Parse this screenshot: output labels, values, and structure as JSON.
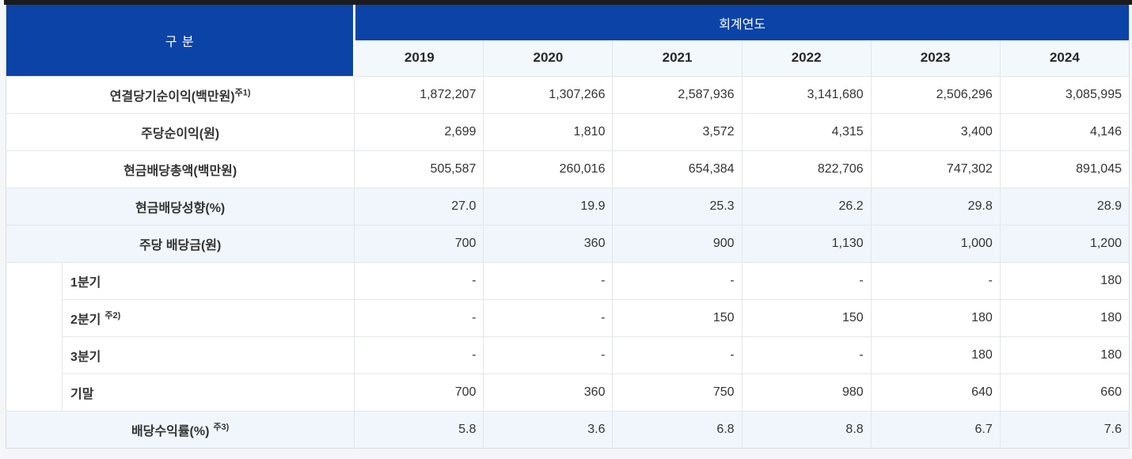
{
  "table": {
    "corner_header": "구 분",
    "group_header": "회계연도",
    "years": [
      "2019",
      "2020",
      "2021",
      "2022",
      "2023",
      "2024"
    ],
    "rows": [
      {
        "label": "연결당기순이익(백만원)",
        "footnote": "주1)",
        "footnote_spaced": false,
        "indent": false,
        "shaded": false,
        "values": [
          "1,872,207",
          "1,307,266",
          "2,587,936",
          "3,141,680",
          "2,506,296",
          "3,085,995"
        ]
      },
      {
        "label": "주당순이익(원)",
        "footnote": "",
        "footnote_spaced": false,
        "indent": false,
        "shaded": false,
        "values": [
          "2,699",
          "1,810",
          "3,572",
          "4,315",
          "3,400",
          "4,146"
        ]
      },
      {
        "label": "현금배당총액(백만원)",
        "footnote": "",
        "footnote_spaced": false,
        "indent": false,
        "shaded": false,
        "values": [
          "505,587",
          "260,016",
          "654,384",
          "822,706",
          "747,302",
          "891,045"
        ]
      },
      {
        "label": "현금배당성향(%)",
        "footnote": "",
        "footnote_spaced": false,
        "indent": false,
        "shaded": true,
        "values": [
          "27.0",
          "19.9",
          "25.3",
          "26.2",
          "29.8",
          "28.9"
        ]
      },
      {
        "label": "주당 배당금(원)",
        "footnote": "",
        "footnote_spaced": false,
        "indent": false,
        "shaded": true,
        "values": [
          "700",
          "360",
          "900",
          "1,130",
          "1,000",
          "1,200"
        ]
      },
      {
        "label": "1분기",
        "footnote": "",
        "footnote_spaced": false,
        "indent": true,
        "shaded": false,
        "values": [
          "-",
          "-",
          "-",
          "-",
          "-",
          "180"
        ]
      },
      {
        "label": "2분기",
        "footnote": "주2)",
        "footnote_spaced": true,
        "indent": true,
        "shaded": false,
        "values": [
          "-",
          "-",
          "150",
          "150",
          "180",
          "180"
        ]
      },
      {
        "label": "3분기",
        "footnote": "",
        "footnote_spaced": false,
        "indent": true,
        "shaded": false,
        "values": [
          "-",
          "-",
          "-",
          "-",
          "180",
          "180"
        ]
      },
      {
        "label": "기말",
        "footnote": "",
        "footnote_spaced": false,
        "indent": true,
        "shaded": false,
        "values": [
          "700",
          "360",
          "750",
          "980",
          "640",
          "660"
        ]
      },
      {
        "label": "배당수익률(%)",
        "footnote": "주3)",
        "footnote_spaced": true,
        "indent": false,
        "shaded": true,
        "values": [
          "5.8",
          "3.6",
          "6.8",
          "8.8",
          "6.7",
          "7.6"
        ]
      }
    ]
  },
  "colors": {
    "header_blue": "#0c43a7",
    "top_bar": "#1b1b1b",
    "shaded_row": "#f0f6fb",
    "year_row_bg": "#f3f8fc",
    "grid_line": "#e3e7ea",
    "text": "#333333"
  }
}
